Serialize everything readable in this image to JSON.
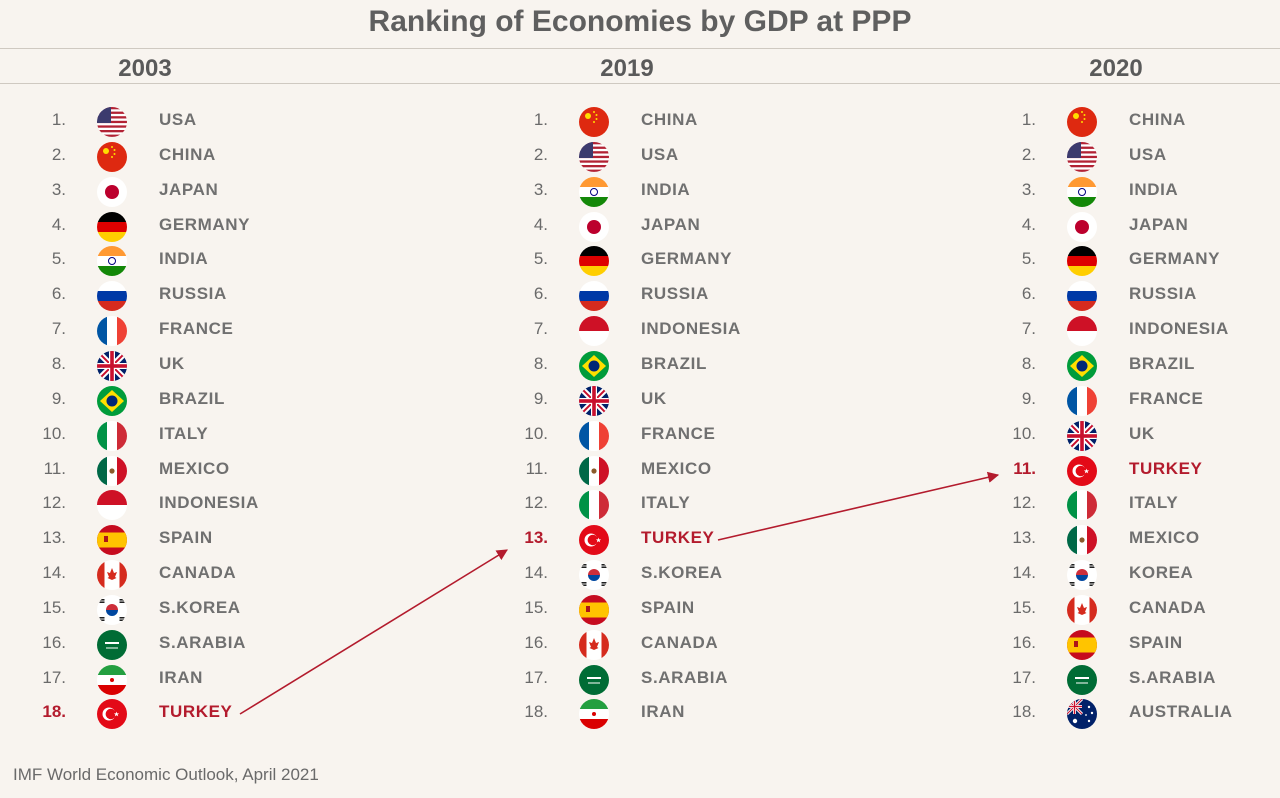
{
  "title": "Ranking of Economies by GDP at PPP",
  "source": "IMF World Economic Outlook, April 2021",
  "highlight_color": "#b31b2d",
  "columns": [
    {
      "year": "2003",
      "rows": [
        {
          "rank": "1.",
          "country": "USA",
          "flag": "usa-flag-icon"
        },
        {
          "rank": "2.",
          "country": "CHINA",
          "flag": "china-flag-icon"
        },
        {
          "rank": "3.",
          "country": "JAPAN",
          "flag": "japan-flag-icon"
        },
        {
          "rank": "4.",
          "country": "GERMANY",
          "flag": "germany-flag-icon"
        },
        {
          "rank": "5.",
          "country": "INDIA",
          "flag": "india-flag-icon"
        },
        {
          "rank": "6.",
          "country": "RUSSIA",
          "flag": "russia-flag-icon"
        },
        {
          "rank": "7.",
          "country": "FRANCE",
          "flag": "france-flag-icon"
        },
        {
          "rank": "8.",
          "country": "UK",
          "flag": "uk-flag-icon"
        },
        {
          "rank": "9.",
          "country": "BRAZIL",
          "flag": "brazil-flag-icon"
        },
        {
          "rank": "10.",
          "country": "ITALY",
          "flag": "italy-flag-icon"
        },
        {
          "rank": "11.",
          "country": "MEXICO",
          "flag": "mexico-flag-icon"
        },
        {
          "rank": "12.",
          "country": "INDONESIA",
          "flag": "indonesia-flag-icon"
        },
        {
          "rank": "13.",
          "country": "SPAIN",
          "flag": "spain-flag-icon"
        },
        {
          "rank": "14.",
          "country": "CANADA",
          "flag": "canada-flag-icon"
        },
        {
          "rank": "15.",
          "country": "S.KOREA",
          "flag": "korea-flag-icon"
        },
        {
          "rank": "16.",
          "country": "S.ARABIA",
          "flag": "saudi-arabia-flag-icon"
        },
        {
          "rank": "17.",
          "country": "IRAN",
          "flag": "iran-flag-icon"
        },
        {
          "rank": "18.",
          "country": "TURKEY",
          "flag": "turkey-flag-icon",
          "highlight": true
        }
      ]
    },
    {
      "year": "2019",
      "rows": [
        {
          "rank": "1.",
          "country": "CHINA",
          "flag": "china-flag-icon"
        },
        {
          "rank": "2.",
          "country": "USA",
          "flag": "usa-flag-icon"
        },
        {
          "rank": "3.",
          "country": "INDIA",
          "flag": "india-flag-icon"
        },
        {
          "rank": "4.",
          "country": "JAPAN",
          "flag": "japan-flag-icon"
        },
        {
          "rank": "5.",
          "country": "GERMANY",
          "flag": "germany-flag-icon"
        },
        {
          "rank": "6.",
          "country": "RUSSIA",
          "flag": "russia-flag-icon"
        },
        {
          "rank": "7.",
          "country": "INDONESIA",
          "flag": "indonesia-flag-icon"
        },
        {
          "rank": "8.",
          "country": "BRAZIL",
          "flag": "brazil-flag-icon"
        },
        {
          "rank": "9.",
          "country": "UK",
          "flag": "uk-flag-icon"
        },
        {
          "rank": "10.",
          "country": "FRANCE",
          "flag": "france-flag-icon"
        },
        {
          "rank": "11.",
          "country": "MEXICO",
          "flag": "mexico-flag-icon"
        },
        {
          "rank": "12.",
          "country": "ITALY",
          "flag": "italy-flag-icon"
        },
        {
          "rank": "13.",
          "country": "TURKEY",
          "flag": "turkey-flag-icon",
          "highlight": true
        },
        {
          "rank": "14.",
          "country": "S.KOREA",
          "flag": "korea-flag-icon"
        },
        {
          "rank": "15.",
          "country": "SPAIN",
          "flag": "spain-flag-icon"
        },
        {
          "rank": "16.",
          "country": "CANADA",
          "flag": "canada-flag-icon"
        },
        {
          "rank": "17.",
          "country": "S.ARABIA",
          "flag": "saudi-arabia-flag-icon"
        },
        {
          "rank": "18.",
          "country": "IRAN",
          "flag": "iran-flag-icon"
        }
      ]
    },
    {
      "year": "2020",
      "rows": [
        {
          "rank": "1.",
          "country": "CHINA",
          "flag": "china-flag-icon"
        },
        {
          "rank": "2.",
          "country": "USA",
          "flag": "usa-flag-icon"
        },
        {
          "rank": "3.",
          "country": "INDIA",
          "flag": "india-flag-icon"
        },
        {
          "rank": "4.",
          "country": "JAPAN",
          "flag": "japan-flag-icon"
        },
        {
          "rank": "5.",
          "country": "GERMANY",
          "flag": "germany-flag-icon"
        },
        {
          "rank": "6.",
          "country": "RUSSIA",
          "flag": "russia-flag-icon"
        },
        {
          "rank": "7.",
          "country": "INDONESIA",
          "flag": "indonesia-flag-icon"
        },
        {
          "rank": "8.",
          "country": "BRAZIL",
          "flag": "brazil-flag-icon"
        },
        {
          "rank": "9.",
          "country": "FRANCE",
          "flag": "france-flag-icon"
        },
        {
          "rank": "10.",
          "country": "UK",
          "flag": "uk-flag-icon"
        },
        {
          "rank": "11.",
          "country": "TURKEY",
          "flag": "turkey-flag-icon",
          "highlight": true
        },
        {
          "rank": "12.",
          "country": "ITALY",
          "flag": "italy-flag-icon"
        },
        {
          "rank": "13.",
          "country": "MEXICO",
          "flag": "mexico-flag-icon"
        },
        {
          "rank": "14.",
          "country": "KOREA",
          "flag": "korea-flag-icon"
        },
        {
          "rank": "15.",
          "country": "CANADA",
          "flag": "canada-flag-icon"
        },
        {
          "rank": "16.",
          "country": "SPAIN",
          "flag": "spain-flag-icon"
        },
        {
          "rank": "17.",
          "country": "S.ARABIA",
          "flag": "saudi-arabia-flag-icon"
        },
        {
          "rank": "18.",
          "country": "AUSTRALIA",
          "flag": "australia-flag-icon"
        }
      ]
    }
  ]
}
